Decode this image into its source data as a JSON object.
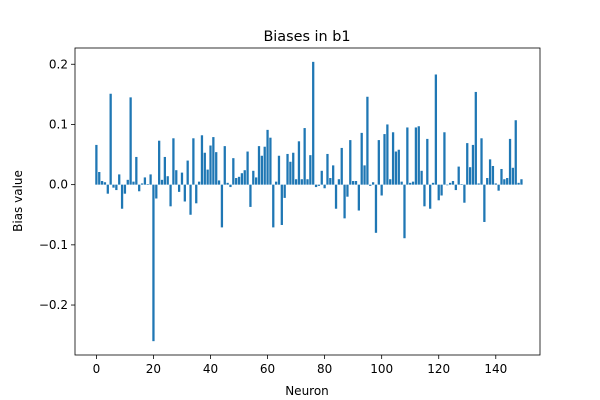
{
  "chart_data": {
    "type": "bar",
    "title": "Biases in b1",
    "xlabel": "Neuron",
    "ylabel": "Bias value",
    "xlim": [
      -7.5,
      155.5
    ],
    "ylim": [
      -0.283,
      0.227
    ],
    "xticks": [
      0,
      20,
      40,
      60,
      80,
      100,
      120,
      140
    ],
    "yticks": [
      -0.2,
      -0.1,
      0.0,
      0.1,
      0.2
    ],
    "ytick_labels": [
      "−0.2",
      "−0.1",
      "0.0",
      "0.1",
      "0.2"
    ],
    "bar_color": "#1f77b4",
    "grid": false,
    "x": [
      0,
      1,
      2,
      3,
      4,
      5,
      6,
      7,
      8,
      9,
      10,
      11,
      12,
      13,
      14,
      15,
      16,
      17,
      18,
      19,
      20,
      21,
      22,
      23,
      24,
      25,
      26,
      27,
      28,
      29,
      30,
      31,
      32,
      33,
      34,
      35,
      36,
      37,
      38,
      39,
      40,
      41,
      42,
      43,
      44,
      45,
      46,
      47,
      48,
      49,
      50,
      51,
      52,
      53,
      54,
      55,
      56,
      57,
      58,
      59,
      60,
      61,
      62,
      63,
      64,
      65,
      66,
      67,
      68,
      69,
      70,
      71,
      72,
      73,
      74,
      75,
      76,
      77,
      78,
      79,
      80,
      81,
      82,
      83,
      84,
      85,
      86,
      87,
      88,
      89,
      90,
      91,
      92,
      93,
      94,
      95,
      96,
      97,
      98,
      99,
      100,
      101,
      102,
      103,
      104,
      105,
      106,
      107,
      108,
      109,
      110,
      111,
      112,
      113,
      114,
      115,
      116,
      117,
      118,
      119,
      120,
      121,
      122,
      123,
      124,
      125,
      126,
      127,
      128,
      129,
      130,
      131,
      132,
      133,
      134,
      135,
      136,
      137,
      138,
      139,
      140,
      141,
      142,
      143,
      144,
      145,
      146,
      147,
      148,
      149
    ],
    "values": [
      0.066,
      0.021,
      0.006,
      0.004,
      -0.015,
      0.151,
      -0.005,
      -0.009,
      0.017,
      -0.04,
      -0.015,
      0.008,
      0.145,
      0.005,
      0.046,
      -0.011,
      0.002,
      0.012,
      0.001,
      0.017,
      -0.26,
      -0.023,
      0.073,
      0.008,
      0.046,
      0.014,
      -0.036,
      0.077,
      0.024,
      -0.012,
      0.02,
      -0.028,
      0.04,
      -0.05,
      0.077,
      -0.031,
      0.005,
      0.082,
      0.053,
      0.025,
      0.065,
      0.079,
      0.054,
      0.007,
      -0.071,
      0.064,
      0.003,
      -0.004,
      0.044,
      0.011,
      0.013,
      0.019,
      0.024,
      0.055,
      -0.037,
      0.023,
      0.012,
      0.064,
      0.048,
      0.063,
      0.091,
      0.078,
      -0.071,
      0.005,
      0.048,
      -0.067,
      -0.022,
      0.051,
      0.038,
      0.053,
      0.009,
      0.072,
      0.009,
      0.094,
      0.009,
      0.049,
      0.204,
      -0.004,
      -0.002,
      0.023,
      -0.006,
      0.051,
      0.011,
      0.032,
      -0.04,
      0.009,
      0.061,
      -0.056,
      -0.02,
      0.074,
      0.006,
      0.006,
      -0.043,
      0.086,
      0.032,
      0.146,
      -0.002,
      0.004,
      -0.08,
      0.074,
      -0.018,
      0.084,
      0.1,
      0.009,
      0.087,
      0.055,
      0.058,
      0.005,
      -0.089,
      0.095,
      0.003,
      0.005,
      0.095,
      0.097,
      0.023,
      -0.036,
      0.076,
      -0.04,
      0.003,
      0.183,
      -0.026,
      -0.018,
      0.087,
      -0.001,
      0.003,
      0.006,
      -0.009,
      0.03,
      0.001,
      -0.03,
      0.069,
      0.029,
      0.066,
      0.154,
      0.002,
      0.077,
      -0.062,
      0.011,
      0.042,
      0.031,
      0.002,
      -0.01,
      0.026,
      0.009,
      0.011,
      0.076,
      0.028,
      0.107,
      0.003,
      0.009
    ]
  }
}
